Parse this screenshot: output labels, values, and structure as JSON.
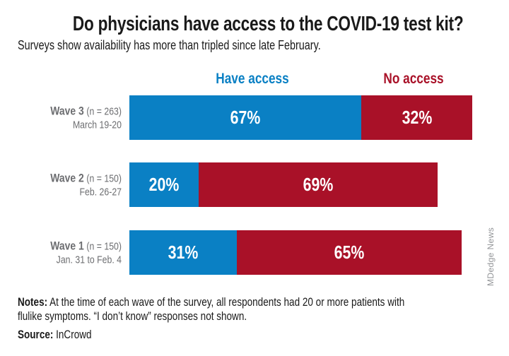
{
  "title": "Do physicians have access to the COVID-19 test kit?",
  "subtitle": "Surveys show availability has more than tripled since late February.",
  "legend": [
    {
      "label": "Have access",
      "color": "#0a80c4"
    },
    {
      "label": "No access",
      "color": "#a91128"
    }
  ],
  "chart_data": {
    "type": "bar",
    "orientation": "horizontal",
    "stacked": true,
    "unit": "percent",
    "xlim": [
      0,
      100
    ],
    "grid": false,
    "legend_position": "top",
    "categories": [
      "Wave 3 (n = 263) March 19-20",
      "Wave 2 (n = 150) Feb. 26-27",
      "Wave 1 (n = 150) Jan. 31 to Feb. 4"
    ],
    "series": [
      {
        "name": "Have access",
        "color": "#0a80c4",
        "values": [
          67,
          20,
          31
        ]
      },
      {
        "name": "No access",
        "color": "#a91128",
        "values": [
          32,
          69,
          65
        ]
      }
    ],
    "rows": [
      {
        "wave": "Wave 3",
        "n": "(n = 263)",
        "dates": "March 19-20",
        "have_pct": 67,
        "no_pct": 32,
        "have_label": "67%",
        "no_label": "32%"
      },
      {
        "wave": "Wave 2",
        "n": "(n = 150)",
        "dates": "Feb. 26-27",
        "have_pct": 20,
        "no_pct": 69,
        "have_label": "20%",
        "no_label": "69%"
      },
      {
        "wave": "Wave 1",
        "n": "(n = 150)",
        "dates": "Jan. 31 to Feb. 4",
        "have_pct": 31,
        "no_pct": 65,
        "have_label": "31%",
        "no_label": "65%"
      }
    ]
  },
  "notes": {
    "label": "Notes:",
    "text": " At the time of each wave of the survey, all respondents had 20 or more patients with flulike symptoms. “I don’t know” responses not shown."
  },
  "source": {
    "label": "Source:",
    "text": " InCrowd"
  },
  "credit": "MDedge News",
  "colors": {
    "have_access": "#0a80c4",
    "no_access": "#a91128",
    "row_label_gray": "#6d6e71",
    "credit_gray": "#939598",
    "text": "#1a1a1a"
  }
}
